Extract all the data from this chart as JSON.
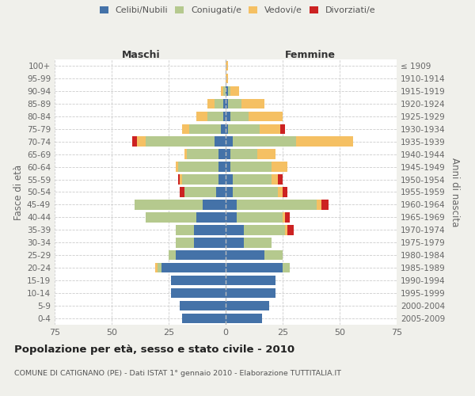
{
  "age_groups": [
    "0-4",
    "5-9",
    "10-14",
    "15-19",
    "20-24",
    "25-29",
    "30-34",
    "35-39",
    "40-44",
    "45-49",
    "50-54",
    "55-59",
    "60-64",
    "65-69",
    "70-74",
    "75-79",
    "80-84",
    "85-89",
    "90-94",
    "95-99",
    "100+"
  ],
  "birth_years": [
    "2005-2009",
    "2000-2004",
    "1995-1999",
    "1990-1994",
    "1985-1989",
    "1980-1984",
    "1975-1979",
    "1970-1974",
    "1965-1969",
    "1960-1964",
    "1955-1959",
    "1950-1954",
    "1945-1949",
    "1940-1944",
    "1935-1939",
    "1930-1934",
    "1925-1929",
    "1920-1924",
    "1915-1919",
    "1910-1914",
    "≤ 1909"
  ],
  "colors": {
    "celibi": "#4472a8",
    "coniugati": "#b5c98e",
    "vedovi": "#f5c063",
    "divorziati": "#cc2222"
  },
  "maschi": {
    "celibi": [
      19,
      20,
      24,
      24,
      28,
      22,
      14,
      14,
      13,
      10,
      4,
      3,
      3,
      3,
      5,
      2,
      1,
      1,
      0,
      0,
      0
    ],
    "coniugati": [
      0,
      0,
      0,
      0,
      2,
      3,
      8,
      8,
      22,
      30,
      14,
      16,
      18,
      14,
      30,
      14,
      7,
      4,
      1,
      0,
      0
    ],
    "vedovi": [
      0,
      0,
      0,
      0,
      1,
      0,
      0,
      0,
      0,
      0,
      0,
      1,
      1,
      1,
      4,
      3,
      5,
      3,
      1,
      0,
      0
    ],
    "divorziati": [
      0,
      0,
      0,
      0,
      0,
      0,
      0,
      0,
      0,
      0,
      2,
      1,
      0,
      0,
      2,
      0,
      0,
      0,
      0,
      0,
      0
    ]
  },
  "femmine": {
    "celibi": [
      16,
      19,
      22,
      22,
      25,
      17,
      8,
      8,
      5,
      5,
      3,
      3,
      2,
      2,
      3,
      1,
      2,
      1,
      1,
      0,
      0
    ],
    "coniugati": [
      0,
      0,
      0,
      0,
      3,
      8,
      12,
      18,
      20,
      35,
      20,
      17,
      18,
      12,
      28,
      14,
      8,
      6,
      1,
      0,
      0
    ],
    "vedovi": [
      0,
      0,
      0,
      0,
      0,
      0,
      0,
      1,
      1,
      2,
      2,
      3,
      7,
      8,
      25,
      9,
      15,
      10,
      4,
      1,
      1
    ],
    "divorziati": [
      0,
      0,
      0,
      0,
      0,
      0,
      0,
      3,
      2,
      3,
      2,
      2,
      0,
      0,
      0,
      2,
      0,
      0,
      0,
      0,
      0
    ]
  },
  "xlim": 75,
  "title": "Popolazione per età, sesso e stato civile - 2010",
  "subtitle": "COMUNE DI CATIGNANO (PE) - Dati ISTAT 1° gennaio 2010 - Elaborazione TUTTITALIA.IT",
  "ylabel_left": "Fasce di età",
  "ylabel_right": "Anni di nascita",
  "xlabel_left": "Maschi",
  "xlabel_right": "Femmine",
  "bg_color": "#f0f0eb",
  "plot_bg": "#ffffff"
}
